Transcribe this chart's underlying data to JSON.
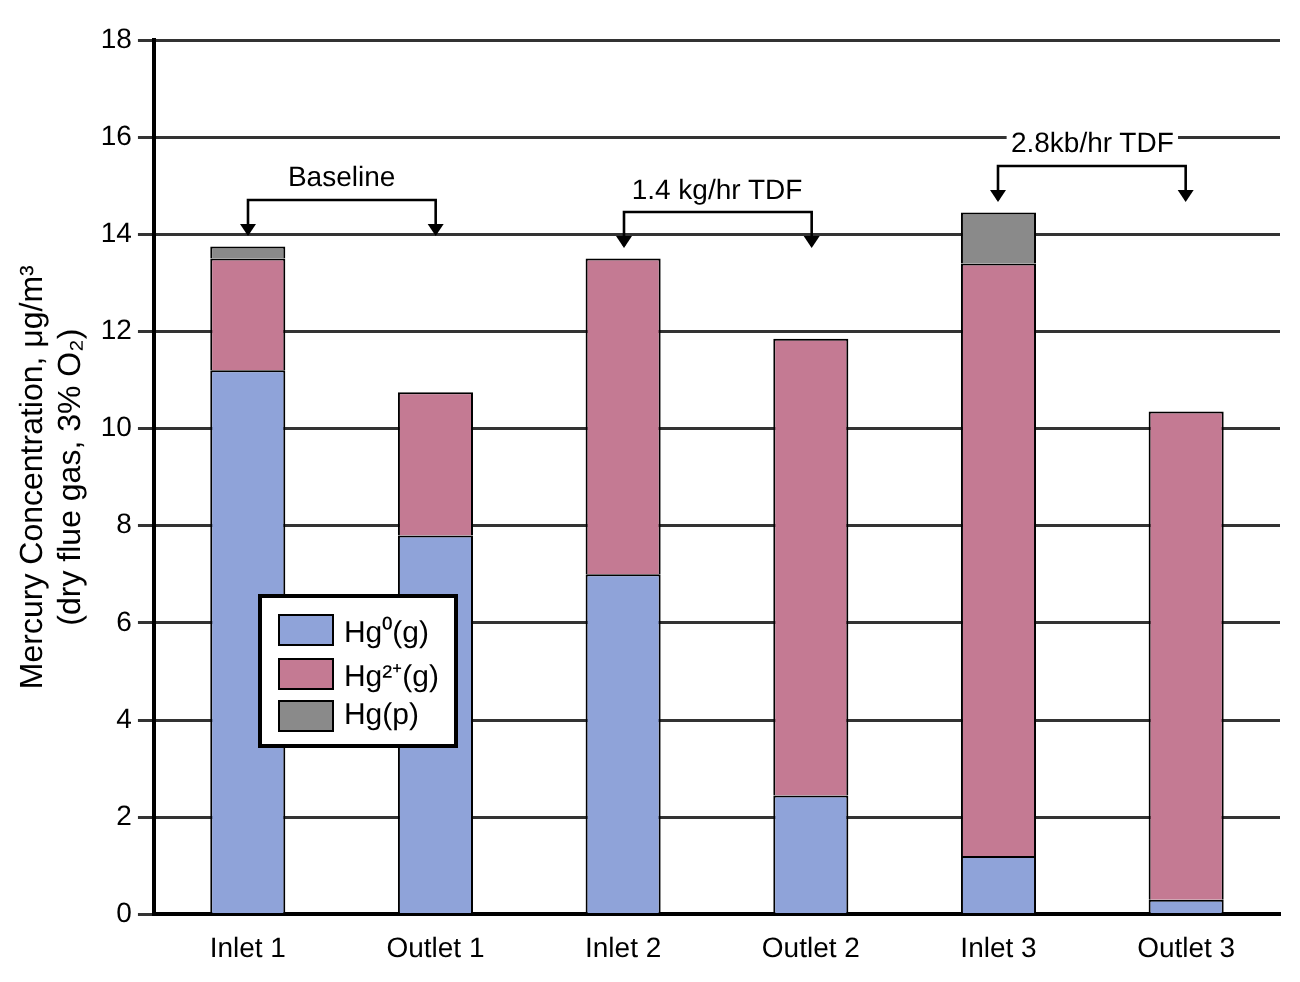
{
  "chart_data": {
    "type": "bar",
    "stacked": true,
    "ylabel": "Mercury Concentration, μg/m³\n(dry flue gas, 3% O₂)",
    "categories": [
      "Inlet 1",
      "Outlet 1",
      "Inlet 2",
      "Outlet 2",
      "Inlet 3",
      "Outlet 3"
    ],
    "series": [
      {
        "name": "Hg⁰(g)",
        "color": "#8fa3d9",
        "values": [
          11.2,
          7.8,
          7.0,
          2.45,
          1.2,
          0.3
        ]
      },
      {
        "name": "Hg²⁺(g)",
        "color": "#c47a93",
        "values": [
          2.3,
          2.95,
          6.5,
          9.4,
          12.2,
          10.05
        ]
      },
      {
        "name": "Hg(p)",
        "color": "#8a8a8a",
        "values": [
          0.25,
          0,
          0,
          0,
          1.05,
          0
        ]
      }
    ],
    "ylim": [
      0,
      18
    ],
    "yticks": [
      0,
      2,
      4,
      6,
      8,
      10,
      12,
      14,
      16,
      18
    ],
    "grid": "y",
    "legend": "bottom left",
    "annotations": [
      "Baseline",
      "1.4 kg/hr TDF",
      "2.8kb/hr TDF"
    ]
  }
}
